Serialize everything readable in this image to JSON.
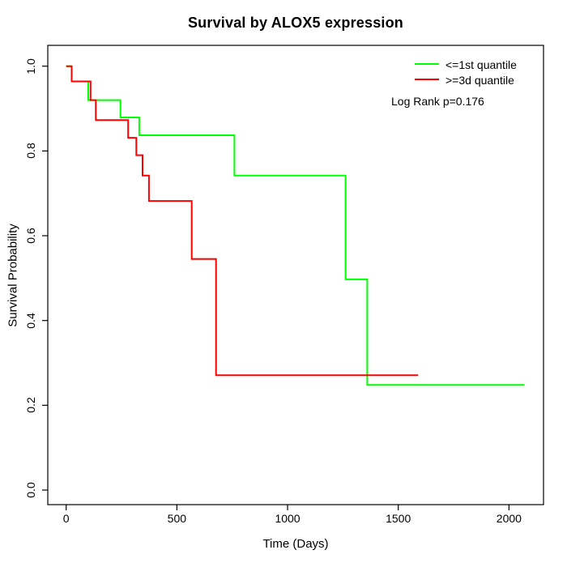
{
  "title": "Survival by ALOX5 expression",
  "x_axis": {
    "label": "Time (Days)",
    "tick_labels": [
      "0",
      "500",
      "1000",
      "1500",
      "2000"
    ],
    "tick_values": [
      0,
      500,
      1000,
      1500,
      2000
    ]
  },
  "y_axis": {
    "label": "Survival Probability",
    "tick_labels": [
      "0.0",
      "0.2",
      "0.4",
      "0.6",
      "0.8",
      "1.0"
    ],
    "tick_values": [
      0,
      0.2,
      0.4,
      0.6,
      0.8,
      1.0
    ]
  },
  "legend": {
    "items": [
      {
        "label": "<=1st quantile",
        "color": "#00ff00"
      },
      {
        "label": ">=3d quantile",
        "color": "#ff0000"
      }
    ],
    "annotation": "Log Rank p=0.176"
  },
  "chart_data": {
    "type": "line",
    "subtype": "kaplan-meier-step",
    "title": "Survival by ALOX5 expression",
    "xlabel": "Time (Days)",
    "ylabel": "Survival Probability",
    "xlim": [
      0,
      2070
    ],
    "ylim": [
      0.0,
      1.0
    ],
    "x_ticks": [
      0,
      500,
      1000,
      1500,
      2000
    ],
    "y_ticks": [
      0.0,
      0.2,
      0.4,
      0.6,
      0.8,
      1.0
    ],
    "grid": false,
    "legend_position": "top-right",
    "annotation": "Log Rank p=0.176",
    "series": [
      {
        "name": "<=1st quantile",
        "color": "#00ff00",
        "steps": [
          [
            0,
            1.0
          ],
          [
            25,
            0.964
          ],
          [
            100,
            0.92
          ],
          [
            245,
            0.879
          ],
          [
            330,
            0.837
          ],
          [
            760,
            0.742
          ],
          [
            1262,
            0.497
          ],
          [
            1360,
            0.248
          ]
        ],
        "end_time": 2070
      },
      {
        "name": ">=3d quantile",
        "color": "#ff0000",
        "steps": [
          [
            0,
            1.0
          ],
          [
            25,
            0.964
          ],
          [
            110,
            0.92
          ],
          [
            134,
            0.873
          ],
          [
            280,
            0.831
          ],
          [
            317,
            0.79
          ],
          [
            345,
            0.742
          ],
          [
            374,
            0.682
          ],
          [
            567,
            0.545
          ],
          [
            677,
            0.271
          ]
        ],
        "end_time": 1590
      }
    ]
  }
}
